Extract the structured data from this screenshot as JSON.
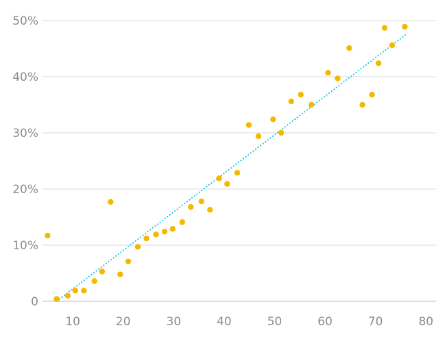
{
  "chart_data": {
    "type": "scatter",
    "title": "",
    "xlabel": "",
    "ylabel": "",
    "xlim": [
      4,
      82
    ],
    "ylim": [
      0,
      50
    ],
    "x_ticks": [
      10,
      20,
      30,
      40,
      50,
      60,
      70,
      80
    ],
    "y_ticks": [
      0,
      10,
      20,
      30,
      40,
      50
    ],
    "x_tick_labels": [
      "10",
      "20",
      "30",
      "40",
      "50",
      "60",
      "70",
      "80"
    ],
    "y_tick_labels": [
      "0",
      "10%",
      "20%",
      "30%",
      "40%",
      "50%"
    ],
    "grid": "horizontal",
    "colors": {
      "points": "#f5b800",
      "trendline": "#17c3e6",
      "grid": "#d9d9d9",
      "labels": "#8c8c8c"
    },
    "series": [
      {
        "points": [
          [
            5,
            11.7
          ],
          [
            6.8,
            0.4
          ],
          [
            9,
            1.0
          ],
          [
            10.5,
            1.9
          ],
          [
            12.2,
            1.9
          ],
          [
            14.3,
            3.6
          ],
          [
            15.8,
            5.3
          ],
          [
            17.5,
            17.7
          ],
          [
            19.4,
            4.8
          ],
          [
            21,
            7.1
          ],
          [
            22.9,
            9.7
          ],
          [
            24.6,
            11.2
          ],
          [
            26.5,
            11.9
          ],
          [
            28.2,
            12.4
          ],
          [
            29.8,
            12.9
          ],
          [
            31.7,
            14.1
          ],
          [
            33.4,
            16.8
          ],
          [
            35.5,
            17.8
          ],
          [
            37.2,
            16.3
          ],
          [
            39,
            21.9
          ],
          [
            40.6,
            20.9
          ],
          [
            42.6,
            22.9
          ],
          [
            44.9,
            31.4
          ],
          [
            46.8,
            29.4
          ],
          [
            49.7,
            32.4
          ],
          [
            51.3,
            30.0
          ],
          [
            53.3,
            35.6
          ],
          [
            55.2,
            36.8
          ],
          [
            57.3,
            35.0
          ],
          [
            60.6,
            40.7
          ],
          [
            62.5,
            39.7
          ],
          [
            64.8,
            45.1
          ],
          [
            67.4,
            35.0
          ],
          [
            69.3,
            36.8
          ],
          [
            70.6,
            42.4
          ],
          [
            71.8,
            48.7
          ],
          [
            73.3,
            45.6
          ],
          [
            75.8,
            48.9
          ]
        ],
        "trendline": {
          "type": "linear",
          "x": [
            6.8,
            76
          ],
          "y": [
            0,
            47.5
          ]
        }
      }
    ]
  }
}
